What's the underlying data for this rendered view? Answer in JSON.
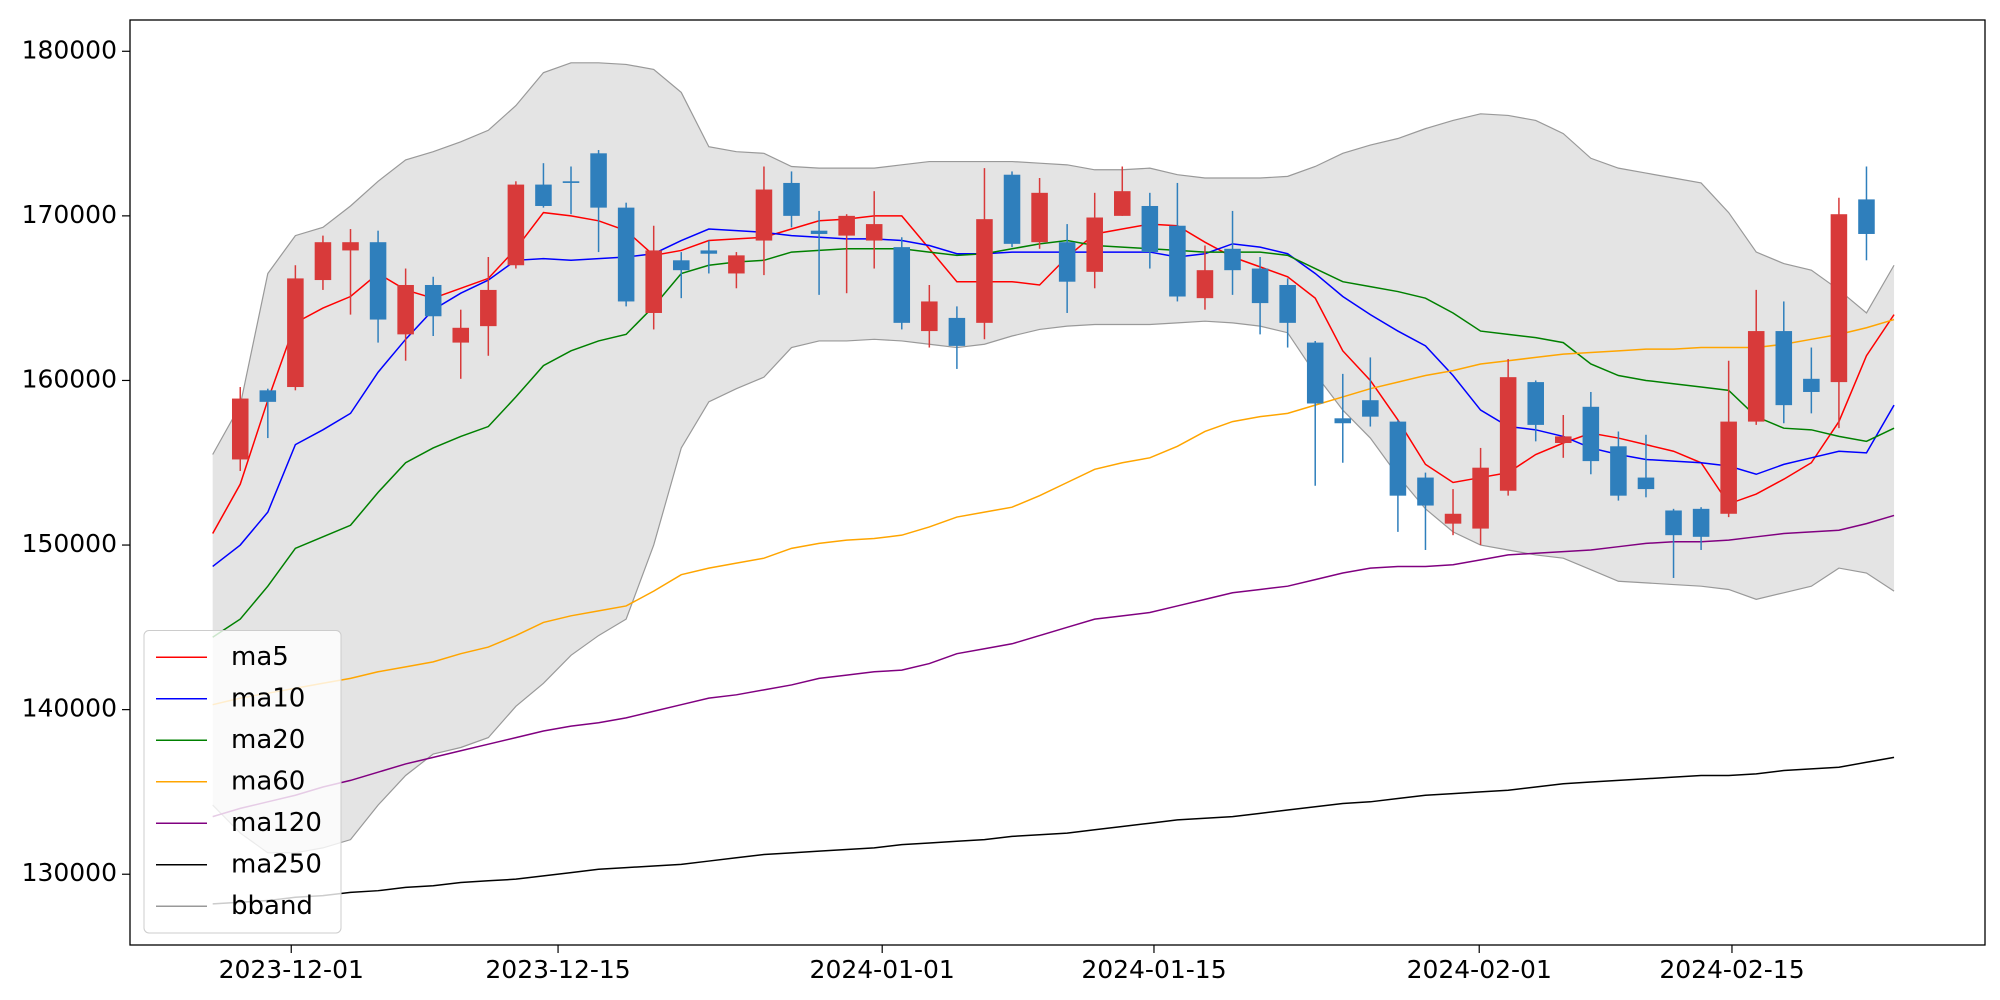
{
  "chart_data": {
    "type": "candlestick",
    "x": [
      -1,
      0,
      1,
      2,
      3,
      4,
      5,
      6,
      7,
      8,
      9,
      10,
      11,
      12,
      13,
      14,
      15,
      16,
      17,
      18,
      19,
      20,
      21,
      22,
      23,
      24,
      25,
      26,
      27,
      28,
      29,
      30,
      31,
      32,
      33,
      34,
      35,
      36,
      37,
      38,
      39,
      40,
      41,
      42,
      43,
      44,
      45,
      46,
      47,
      48,
      49,
      50,
      51,
      52,
      53,
      54,
      55,
      56,
      57,
      58,
      59,
      60
    ],
    "open": [
      null,
      155200,
      159400,
      159600,
      166100,
      167900,
      168400,
      162800,
      165800,
      162300,
      163300,
      167000,
      171900,
      172100,
      173800,
      170500,
      164100,
      167300,
      167900,
      166500,
      168500,
      172000,
      169100,
      168800,
      168500,
      168100,
      163000,
      163800,
      163500,
      172500,
      168400,
      168400,
      166600,
      170000,
      170600,
      169400,
      165000,
      168000,
      166800,
      165800,
      162300,
      157700,
      158800,
      157500,
      154100,
      151300,
      151000,
      153300,
      159900,
      156200,
      158400,
      156000,
      154100,
      152100,
      152200,
      151900,
      157500,
      163000,
      160100,
      159900,
      171000,
      null
    ],
    "high": [
      null,
      159600,
      159500,
      167000,
      168800,
      169200,
      169100,
      166800,
      166300,
      164300,
      167500,
      172100,
      173200,
      173000,
      174000,
      170800,
      169400,
      167800,
      168500,
      167800,
      173000,
      172700,
      170300,
      170100,
      171500,
      168700,
      165800,
      164500,
      172900,
      172700,
      172300,
      169500,
      171400,
      173000,
      171400,
      172000,
      168200,
      170300,
      167500,
      166200,
      162400,
      160400,
      161400,
      157600,
      154400,
      153400,
      155900,
      161300,
      160000,
      157900,
      159300,
      156900,
      156700,
      152200,
      152300,
      161200,
      165500,
      164800,
      162000,
      171100,
      173000,
      null
    ],
    "low": [
      null,
      154500,
      156500,
      159400,
      165500,
      164000,
      162300,
      161200,
      162700,
      160100,
      161500,
      166800,
      170500,
      170100,
      167800,
      164500,
      163100,
      165000,
      166500,
      165600,
      166400,
      169300,
      165200,
      165300,
      166800,
      163100,
      162000,
      160700,
      162500,
      168100,
      168000,
      164100,
      165600,
      170000,
      166800,
      164800,
      164300,
      165200,
      162800,
      162000,
      153600,
      155000,
      157200,
      150800,
      149700,
      150600,
      150000,
      153000,
      156300,
      155300,
      154300,
      152700,
      152900,
      148000,
      149700,
      151700,
      157300,
      157400,
      158000,
      157100,
      167300,
      null
    ],
    "close": [
      null,
      158900,
      158700,
      166200,
      168400,
      168400,
      163700,
      165800,
      163900,
      163200,
      165500,
      171900,
      170600,
      172000,
      170500,
      164800,
      167900,
      166700,
      167700,
      167600,
      171600,
      170000,
      168900,
      170000,
      169500,
      163500,
      164800,
      162100,
      169800,
      168300,
      171400,
      166000,
      169900,
      171500,
      167800,
      165100,
      166700,
      166700,
      164700,
      163500,
      158600,
      157400,
      157800,
      153000,
      152400,
      151900,
      154700,
      160200,
      157300,
      156600,
      155100,
      153000,
      153400,
      150600,
      150500,
      157500,
      163000,
      158500,
      159300,
      170100,
      168900,
      null
    ],
    "up_color": "#d83a3a",
    "down_color": "#2f7fbc",
    "series": [
      {
        "name": "ma5",
        "color": "#ff0000",
        "values": [
          150700,
          153700,
          158800,
          163500,
          164400,
          165100,
          166500,
          165500,
          165000,
          165600,
          166200,
          168000,
          170200,
          170000,
          169700,
          169100,
          167600,
          167900,
          168500,
          168600,
          168700,
          169200,
          169700,
          169800,
          170000,
          170000,
          168000,
          166000,
          166000,
          166000,
          165800,
          167500,
          168900,
          169200,
          169500,
          169400,
          168400,
          167500,
          166900,
          166300,
          165000,
          161800,
          160000,
          157600,
          154900,
          153800,
          154100,
          154400,
          155500,
          156200,
          156800,
          156500,
          156100,
          155700,
          155000,
          152500,
          153100,
          154000,
          155000,
          157500,
          161500,
          164000
        ]
      },
      {
        "name": "ma10",
        "color": "#0000ff",
        "values": [
          148700,
          150000,
          152000,
          156100,
          157000,
          158000,
          160500,
          162500,
          164300,
          165300,
          166100,
          167300,
          167400,
          167300,
          167400,
          167500,
          167700,
          168500,
          169200,
          169100,
          169000,
          168800,
          168700,
          168600,
          168600,
          168500,
          168200,
          167700,
          167700,
          167800,
          167800,
          167800,
          167800,
          167800,
          167800,
          167500,
          167700,
          168300,
          168100,
          167700,
          166500,
          165100,
          164000,
          163000,
          162100,
          160300,
          158200,
          157200,
          157000,
          156600,
          155900,
          155500,
          155200,
          155100,
          155000,
          154800,
          154300,
          154900,
          155300,
          155700,
          155600,
          158500
        ]
      },
      {
        "name": "ma20",
        "color": "#008000",
        "values": [
          144400,
          145500,
          147500,
          149800,
          150500,
          151200,
          153200,
          155000,
          155900,
          156600,
          157200,
          159000,
          160900,
          161800,
          162400,
          162800,
          164500,
          166500,
          167000,
          167200,
          167300,
          167800,
          167900,
          168000,
          168000,
          168000,
          167800,
          167600,
          167700,
          168000,
          168300,
          168500,
          168200,
          168100,
          168000,
          167900,
          167800,
          167800,
          167800,
          167600,
          166800,
          166000,
          165700,
          165400,
          165000,
          164100,
          163000,
          162800,
          162600,
          162300,
          161000,
          160300,
          160000,
          159800,
          159600,
          159400,
          157800,
          157100,
          157000,
          156600,
          156300,
          157100
        ]
      },
      {
        "name": "ma60",
        "color": "#ffa500",
        "values": [
          140300,
          140700,
          141000,
          141300,
          141600,
          141900,
          142300,
          142600,
          142900,
          143400,
          143800,
          144500,
          145300,
          145700,
          146000,
          146300,
          147200,
          148200,
          148600,
          148900,
          149200,
          149800,
          150100,
          150300,
          150400,
          150600,
          151100,
          151700,
          152000,
          152300,
          153000,
          153800,
          154600,
          155000,
          155300,
          156000,
          156900,
          157500,
          157800,
          158000,
          158500,
          159000,
          159500,
          159900,
          160300,
          160600,
          161000,
          161200,
          161400,
          161600,
          161700,
          161800,
          161900,
          161900,
          162000,
          162000,
          162000,
          162200,
          162500,
          162800,
          163200,
          163700
        ]
      },
      {
        "name": "ma120",
        "color": "#800080",
        "values": [
          133500,
          134000,
          134400,
          134800,
          135300,
          135700,
          136200,
          136700,
          137100,
          137500,
          137900,
          138300,
          138700,
          139000,
          139200,
          139500,
          139900,
          140300,
          140700,
          140900,
          141200,
          141500,
          141900,
          142100,
          142300,
          142400,
          142800,
          143400,
          143700,
          144000,
          144500,
          145000,
          145500,
          145700,
          145900,
          146300,
          146700,
          147100,
          147300,
          147500,
          147900,
          148300,
          148600,
          148700,
          148700,
          148800,
          149100,
          149400,
          149500,
          149600,
          149700,
          149900,
          150100,
          150200,
          150200,
          150300,
          150500,
          150700,
          150800,
          150900,
          151300,
          151800
        ]
      },
      {
        "name": "ma250",
        "color": "#000000",
        "values": [
          128200,
          128300,
          128400,
          128600,
          128700,
          128900,
          129000,
          129200,
          129300,
          129500,
          129600,
          129700,
          129900,
          130100,
          130300,
          130400,
          130500,
          130600,
          130800,
          131000,
          131200,
          131300,
          131400,
          131500,
          131600,
          131800,
          131900,
          132000,
          132100,
          132300,
          132400,
          132500,
          132700,
          132900,
          133100,
          133300,
          133400,
          133500,
          133700,
          133900,
          134100,
          134300,
          134400,
          134600,
          134800,
          134900,
          135000,
          135100,
          135300,
          135500,
          135600,
          135700,
          135800,
          135900,
          136000,
          136000,
          136100,
          136300,
          136400,
          136500,
          136800,
          137100
        ]
      },
      {
        "name": "bband",
        "color": "#999999",
        "fill": "#e4e4e4",
        "upper": [
          155500,
          158500,
          166500,
          168800,
          169300,
          170600,
          172100,
          173400,
          173900,
          174500,
          175200,
          176700,
          178700,
          179300,
          179300,
          179200,
          178900,
          177500,
          174200,
          173900,
          173800,
          173000,
          172900,
          172900,
          172900,
          173100,
          173300,
          173300,
          173300,
          173300,
          173200,
          173100,
          172800,
          172800,
          172900,
          172500,
          172300,
          172300,
          172300,
          172400,
          173000,
          173800,
          174300,
          174700,
          175300,
          175800,
          176200,
          176100,
          175800,
          175000,
          173500,
          172900,
          172600,
          172300,
          172000,
          170200,
          167800,
          167100,
          166700,
          165500,
          164100,
          167000
        ],
        "lower": [
          134200,
          132500,
          131300,
          131300,
          131600,
          132100,
          134200,
          136000,
          137300,
          137700,
          138300,
          140200,
          141600,
          143300,
          144500,
          145500,
          150000,
          155900,
          158700,
          159500,
          160200,
          162000,
          162400,
          162400,
          162500,
          162400,
          162200,
          162000,
          162200,
          162700,
          163100,
          163300,
          163400,
          163400,
          163400,
          163500,
          163600,
          163500,
          163300,
          162900,
          160400,
          158200,
          156500,
          154200,
          152200,
          150800,
          150000,
          149700,
          149400,
          149200,
          148500,
          147800,
          147700,
          147600,
          147500,
          147300,
          146700,
          147100,
          147500,
          148600,
          148300,
          147200
        ]
      }
    ],
    "xlim": [
      -4.0,
      63.3
    ],
    "xticks": [
      {
        "value": 1.85,
        "label": "2023-12-01"
      },
      {
        "value": 11.53,
        "label": "2023-12-15"
      },
      {
        "value": 23.29,
        "label": "2024-01-01"
      },
      {
        "value": 33.15,
        "label": "2024-01-15"
      },
      {
        "value": 44.95,
        "label": "2024-02-01"
      },
      {
        "value": 54.12,
        "label": "2024-02-15"
      }
    ],
    "ylim": [
      125700,
      181900
    ],
    "yticks": [
      130000,
      140000,
      150000,
      160000,
      170000,
      180000
    ],
    "legend": "lower left",
    "grid": false
  }
}
